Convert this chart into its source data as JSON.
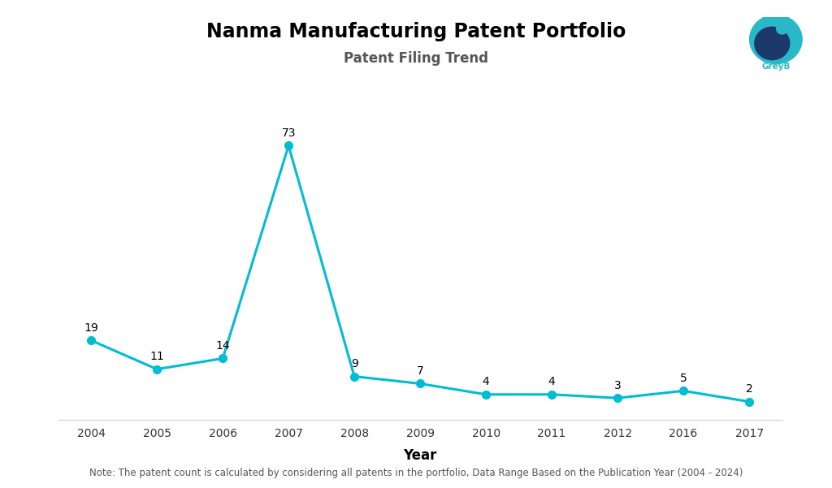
{
  "title": "Nanma Manufacturing Patent Portfolio",
  "subtitle": "Patent Filing Trend",
  "xlabel": "Year",
  "years": [
    2004,
    2005,
    2006,
    2007,
    2008,
    2009,
    2010,
    2011,
    2012,
    2016,
    2017
  ],
  "values": [
    19,
    11,
    14,
    73,
    9,
    7,
    4,
    4,
    3,
    5,
    2
  ],
  "line_color": "#00BCD4",
  "marker_color": "#00BCD4",
  "marker_size": 7,
  "line_width": 2.2,
  "background_color": "#ffffff",
  "note": "Note: The patent count is calculated by considering all patents in the portfolio, Data Range Based on the Publication Year (2004 - 2024)",
  "title_fontsize": 17,
  "subtitle_fontsize": 12,
  "xlabel_fontsize": 12,
  "annotation_fontsize": 10,
  "note_fontsize": 8.5,
  "ylim": [
    -3,
    85
  ],
  "tick_fontsize": 10
}
